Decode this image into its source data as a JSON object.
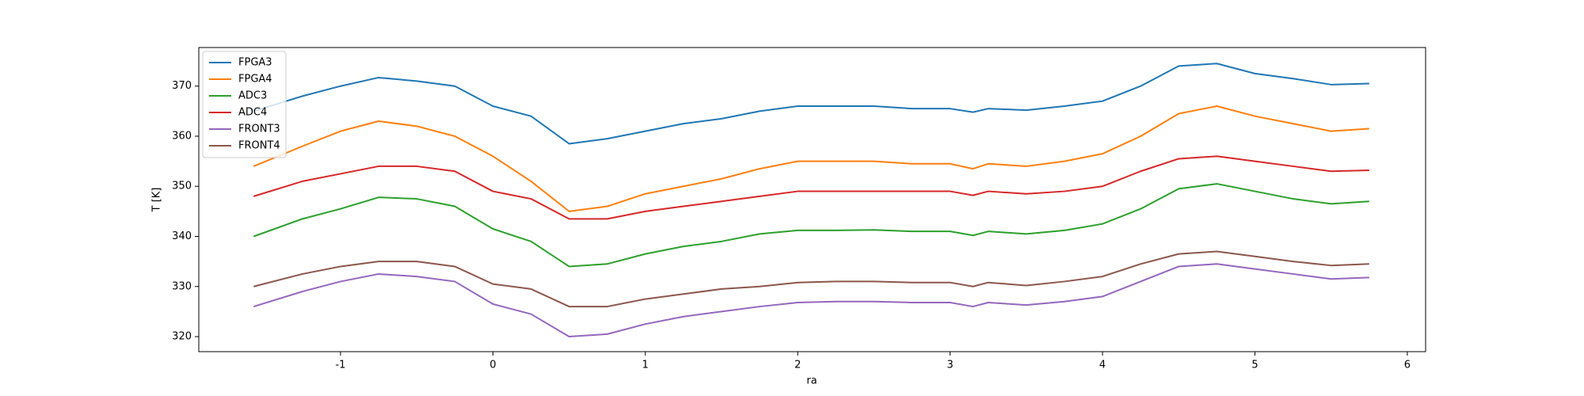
{
  "chart_data": {
    "type": "line",
    "xlabel": "ra",
    "ylabel": "T [K]",
    "x": [
      -1.57,
      -1.25,
      -1.0,
      -0.75,
      -0.5,
      -0.25,
      0,
      0.25,
      0.5,
      0.75,
      1.0,
      1.25,
      1.5,
      1.75,
      2.0,
      2.25,
      2.5,
      2.75,
      3.0,
      3.15,
      3.25,
      3.5,
      3.75,
      4.0,
      4.25,
      4.5,
      4.75,
      5.0,
      5.25,
      5.5,
      5.75
    ],
    "series": [
      {
        "name": "FPGA3",
        "color": "#1f77b4",
        "values": [
          365,
          368,
          370,
          371.7,
          371,
          370,
          366,
          364,
          358.5,
          359.5,
          361,
          362.5,
          363.5,
          365,
          366,
          366,
          366,
          365.5,
          365.5,
          364.8,
          365.5,
          365.2,
          366,
          367,
          370,
          374,
          374.5,
          372.5,
          371.5,
          370.3,
          370.5
        ]
      },
      {
        "name": "FPGA4",
        "color": "#ff7f0e",
        "values": [
          354,
          358,
          361,
          363,
          362,
          360,
          356,
          351,
          345,
          346,
          348.5,
          350,
          351.5,
          353.5,
          355,
          355,
          355,
          354.5,
          354.5,
          353.5,
          354.5,
          354,
          355,
          356.5,
          360,
          364.5,
          366,
          364,
          362.5,
          361,
          361.5
        ]
      },
      {
        "name": "ADC3",
        "color": "#2ca02c",
        "values": [
          340,
          343.5,
          345.5,
          347.8,
          347.5,
          346,
          341.5,
          339,
          334,
          334.5,
          336.5,
          338,
          339,
          340.5,
          341.2,
          341.2,
          341.3,
          341,
          341,
          340.2,
          341,
          340.5,
          341.2,
          342.5,
          345.5,
          349.5,
          350.5,
          349,
          347.5,
          346.5,
          347
        ]
      },
      {
        "name": "ADC4",
        "color": "#d62728",
        "values": [
          348,
          351,
          352.5,
          354,
          354,
          353,
          349,
          347.5,
          343.5,
          343.5,
          345,
          346,
          347,
          348,
          349,
          349,
          349,
          349,
          349,
          348.2,
          349,
          348.5,
          349,
          350,
          353,
          355.5,
          356,
          355,
          354,
          353,
          353.2
        ]
      },
      {
        "name": "FRONT3",
        "color": "#9467bd",
        "values": [
          326,
          329,
          331,
          332.5,
          332,
          331,
          326.5,
          324.5,
          320,
          320.5,
          322.5,
          324,
          325,
          326,
          326.8,
          327,
          327,
          326.8,
          326.8,
          326,
          326.8,
          326.3,
          327,
          328,
          331,
          334,
          334.5,
          333.5,
          332.5,
          331.5,
          331.8
        ]
      },
      {
        "name": "FRONT4",
        "color": "#8c564b",
        "values": [
          330,
          332.5,
          334,
          335,
          335,
          334,
          330.5,
          329.5,
          326,
          326,
          327.5,
          328.5,
          329.5,
          330,
          330.8,
          331,
          331,
          330.8,
          330.8,
          330,
          330.8,
          330.2,
          331,
          332,
          334.5,
          336.5,
          337,
          336,
          335,
          334.2,
          334.5
        ]
      }
    ],
    "xlim": [
      -1.93,
      6.12
    ],
    "ylim": [
      317,
      377.7
    ],
    "xticks": [
      -1,
      0,
      1,
      2,
      3,
      4,
      5,
      6
    ],
    "yticks": [
      320,
      330,
      340,
      350,
      360,
      370
    ],
    "legend": "upper left"
  }
}
